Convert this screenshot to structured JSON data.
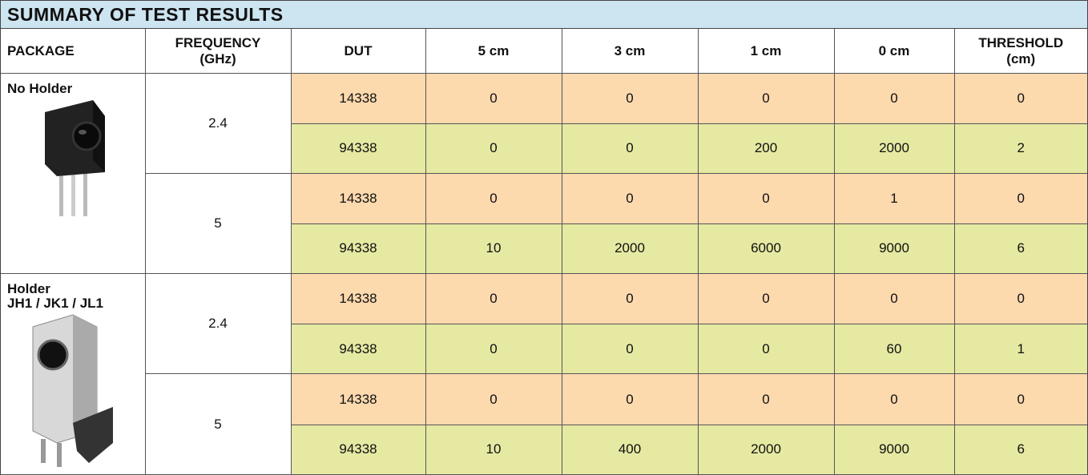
{
  "title": "SUMMARY OF TEST RESULTS",
  "columns": [
    "PACKAGE",
    "FREQUENCY\n(GHz)",
    "DUT",
    "5 cm",
    "3 cm",
    "1 cm",
    "0 cm",
    "THRESHOLD\n(cm)"
  ],
  "packages": [
    {
      "label": "No Holder",
      "frequencies": [
        {
          "frequency": 2.4,
          "rows": [
            {
              "dut": 14338,
              "values": [
                0,
                0,
                0,
                0,
                0
              ]
            },
            {
              "dut": 94338,
              "values": [
                0,
                0,
                200,
                2000,
                2
              ]
            }
          ]
        },
        {
          "frequency": 5,
          "rows": [
            {
              "dut": 14338,
              "values": [
                0,
                0,
                0,
                1,
                0
              ]
            },
            {
              "dut": 94338,
              "values": [
                10,
                2000,
                6000,
                9000,
                6
              ]
            }
          ]
        }
      ]
    },
    {
      "label": "Holder\nJH1 / JK1 / JL1",
      "frequencies": [
        {
          "frequency": 2.4,
          "rows": [
            {
              "dut": 14338,
              "values": [
                0,
                0,
                0,
                0,
                0
              ]
            },
            {
              "dut": 94338,
              "values": [
                0,
                0,
                0,
                60,
                1
              ]
            }
          ]
        },
        {
          "frequency": 5,
          "rows": [
            {
              "dut": 14338,
              "values": [
                0,
                0,
                0,
                0,
                0
              ]
            },
            {
              "dut": 94338,
              "values": [
                10,
                400,
                2000,
                9000,
                6
              ]
            }
          ]
        }
      ]
    }
  ]
}
